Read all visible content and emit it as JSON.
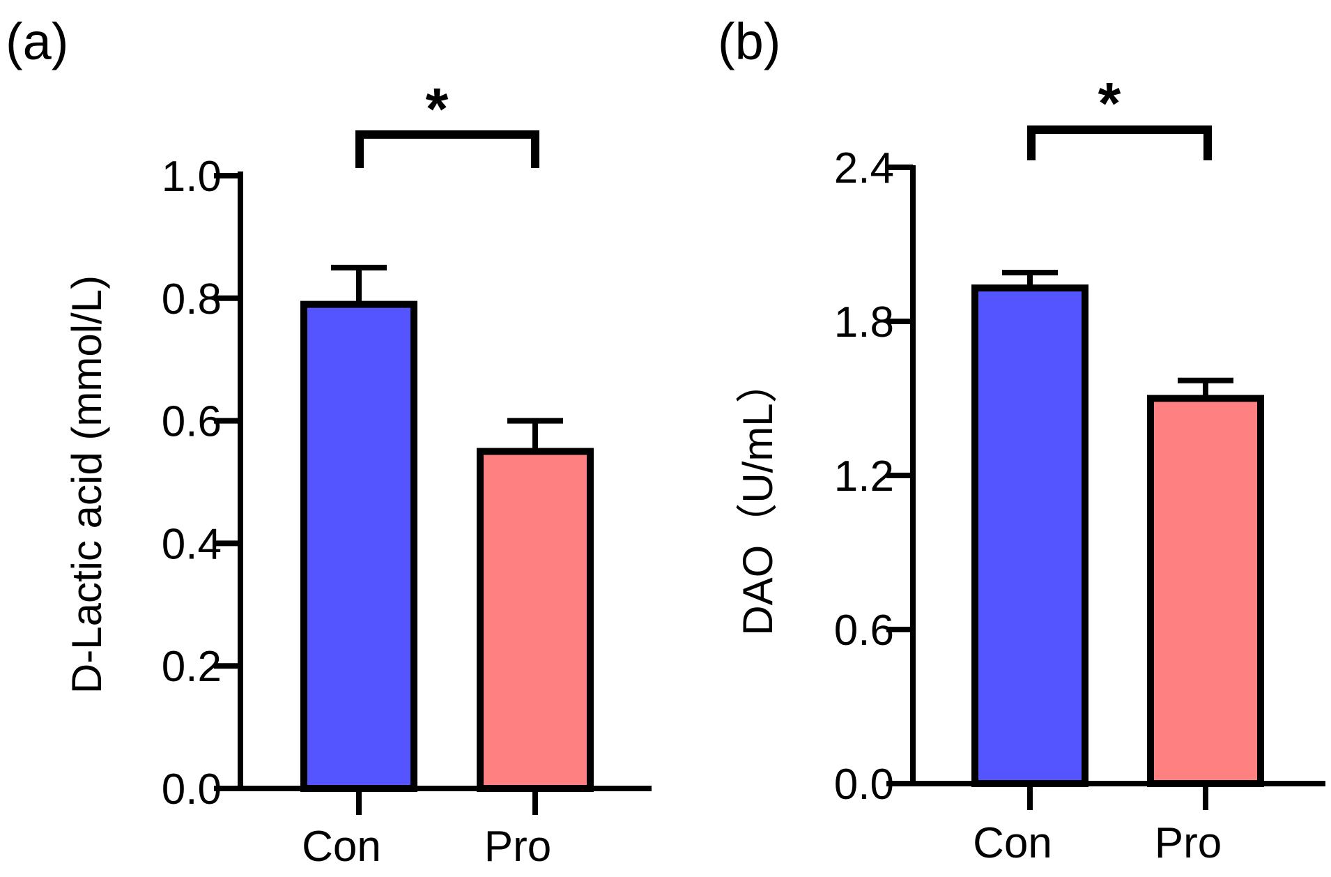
{
  "chart_data": [
    {
      "panel_label": "(a)",
      "type": "bar",
      "categories": [
        "Con",
        "Pro"
      ],
      "values": [
        0.79,
        0.55
      ],
      "errors": [
        0.06,
        0.05
      ],
      "colors": [
        "#5555ff",
        "#ff8080"
      ],
      "ylabel": "D-Lactic acid (mmol/L)",
      "xlabel": "",
      "ylim": [
        0,
        1.0
      ],
      "yticks": [
        0.0,
        0.2,
        0.4,
        0.6,
        0.8,
        1.0
      ],
      "ytick_labels": [
        "0.0",
        "0.2",
        "0.4",
        "0.6",
        "0.8",
        "1.0"
      ],
      "significance": {
        "between": [
          "Con",
          "Pro"
        ],
        "label": "*"
      }
    },
    {
      "panel_label": "(b)",
      "type": "bar",
      "categories": [
        "Con",
        "Pro"
      ],
      "values": [
        1.93,
        1.5
      ],
      "errors": [
        0.06,
        0.07
      ],
      "colors": [
        "#5555ff",
        "#ff8080"
      ],
      "ylabel": "DAO（U/mL）",
      "xlabel": "",
      "ylim": [
        0,
        2.4
      ],
      "yticks": [
        0.0,
        0.6,
        1.2,
        1.8,
        2.4
      ],
      "ytick_labels": [
        "0.0",
        "0.6",
        "1.2",
        "1.8",
        "2.4"
      ],
      "significance": {
        "between": [
          "Con",
          "Pro"
        ],
        "label": "*"
      }
    }
  ]
}
